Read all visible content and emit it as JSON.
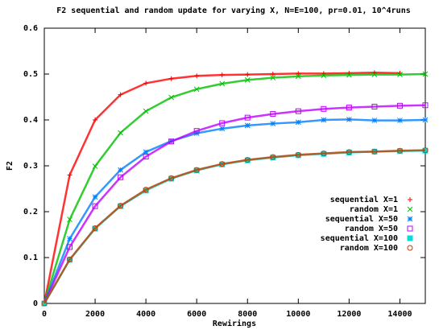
{
  "chart_data": {
    "type": "scatter",
    "title": "F2 sequential and random update for varying X, N=E=100, pr=0.01, 10^4runs",
    "x_label": "Rewirings",
    "y_label": "F2",
    "x": [
      0,
      1000,
      2000,
      3000,
      4000,
      5000,
      6000,
      7000,
      8000,
      9000,
      10000,
      11000,
      12000,
      13000,
      14000,
      15000
    ],
    "xlim": [
      0,
      15000
    ],
    "ylim": [
      0,
      0.6
    ],
    "xticks": [
      0,
      2000,
      4000,
      6000,
      8000,
      10000,
      12000,
      14000
    ],
    "yticks": [
      0,
      0.1,
      0.2,
      0.3,
      0.4,
      0.5,
      0.6
    ],
    "series": [
      {
        "name": "sequential X=1",
        "color": "#ff0000",
        "marker": "plus",
        "values": [
          0,
          0.28,
          0.4,
          0.455,
          0.48,
          0.49,
          0.496,
          0.498,
          0.499,
          0.5,
          0.501,
          0.501,
          0.502,
          0.503,
          0.502,
          null
        ]
      },
      {
        "name": "random X=1",
        "color": "#00c000",
        "marker": "cross",
        "values": [
          0,
          0.183,
          0.299,
          0.372,
          0.419,
          0.449,
          0.467,
          0.479,
          0.487,
          0.492,
          0.495,
          0.497,
          0.498,
          0.499,
          0.499,
          0.5
        ]
      },
      {
        "name": "sequential X=50",
        "color": "#0080ff",
        "marker": "star",
        "values": [
          0,
          0.141,
          0.232,
          0.291,
          0.33,
          0.354,
          0.371,
          0.381,
          0.388,
          0.392,
          0.395,
          0.4,
          0.401,
          0.399,
          0.399,
          0.4
        ]
      },
      {
        "name": "random X=50",
        "color": "#c000ff",
        "marker": "square",
        "values": [
          0,
          0.123,
          0.212,
          0.275,
          0.32,
          0.353,
          0.376,
          0.393,
          0.405,
          0.413,
          0.419,
          0.424,
          0.427,
          0.429,
          0.431,
          0.432
        ]
      },
      {
        "name": "sequential X=100",
        "color": "#00dddd",
        "marker": "filled-square",
        "values": [
          0,
          0.095,
          0.163,
          0.212,
          0.246,
          0.272,
          0.29,
          0.303,
          0.312,
          0.318,
          0.323,
          0.326,
          0.329,
          0.331,
          0.332,
          0.333
        ]
      },
      {
        "name": "random X=100",
        "color": "#c04000",
        "marker": "circle",
        "values": [
          0,
          0.096,
          0.164,
          0.213,
          0.248,
          0.273,
          0.291,
          0.304,
          0.313,
          0.319,
          0.324,
          0.327,
          0.33,
          0.331,
          0.333,
          0.334
        ]
      }
    ]
  }
}
